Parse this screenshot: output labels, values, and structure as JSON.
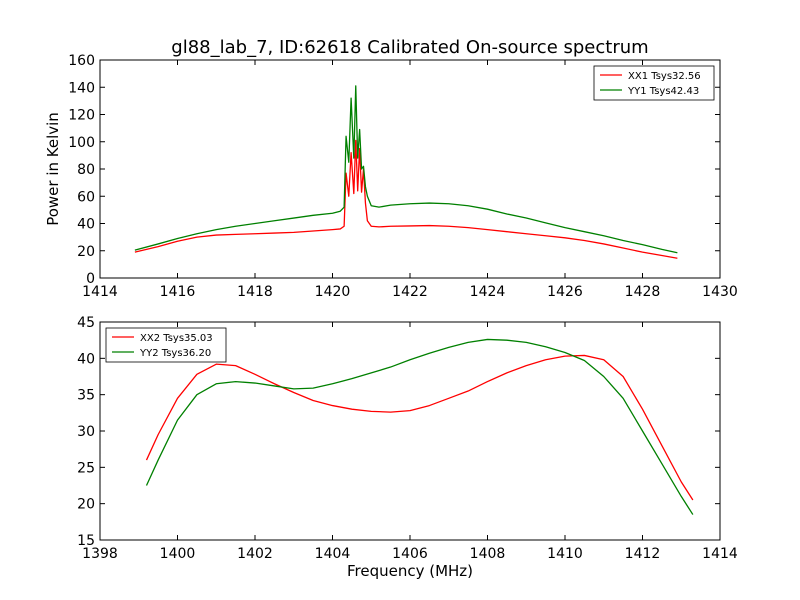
{
  "figure": {
    "title": "gl88_lab_7, ID:62618 Calibrated On-source spectrum"
  },
  "colors": {
    "xx": "#ff0000",
    "yy": "#008000",
    "axes": "#000000",
    "background": "#ffffff"
  },
  "chart_data": [
    {
      "type": "line",
      "title": "gl88_lab_7, ID:62618 Calibrated On-source spectrum",
      "xlabel": "",
      "ylabel": "Power in Kelvin",
      "xlim": [
        1414,
        1430
      ],
      "ylim": [
        0,
        160
      ],
      "xticks": [
        "1414",
        "1416",
        "1418",
        "1420",
        "1422",
        "1424",
        "1426",
        "1428",
        "1430"
      ],
      "yticks": [
        "0",
        "20",
        "40",
        "60",
        "80",
        "100",
        "120",
        "140",
        "160"
      ],
      "grid": false,
      "legend": "top-right",
      "series": [
        {
          "name": "XX1 Tsys32.56",
          "color": "#ff0000",
          "x": [
            1414.9,
            1415.5,
            1416,
            1416.5,
            1417,
            1417.5,
            1418,
            1418.5,
            1419,
            1419.5,
            1420,
            1420.2,
            1420.3,
            1420.35,
            1420.42,
            1420.48,
            1420.55,
            1420.6,
            1420.65,
            1420.7,
            1420.75,
            1420.8,
            1420.85,
            1420.9,
            1421,
            1421.2,
            1421.5,
            1422,
            1422.5,
            1423,
            1423.5,
            1424,
            1424.5,
            1425,
            1425.5,
            1426,
            1426.5,
            1427,
            1427.5,
            1428,
            1428.5,
            1428.9
          ],
          "y": [
            19,
            23,
            27,
            30,
            31.5,
            32,
            32.5,
            33,
            33.5,
            34.5,
            35.5,
            36,
            38,
            77,
            60,
            92,
            62,
            101,
            64,
            95,
            63,
            80,
            55,
            42,
            38,
            37.5,
            38,
            38.2,
            38.5,
            38,
            37,
            35.5,
            34,
            32.5,
            31,
            29.5,
            27.5,
            25,
            22,
            19,
            16.5,
            14.5
          ]
        },
        {
          "name": "YY1 Tsys42.43",
          "color": "#008000",
          "x": [
            1414.9,
            1415.5,
            1416,
            1416.5,
            1417,
            1417.5,
            1418,
            1418.5,
            1419,
            1419.5,
            1420,
            1420.2,
            1420.3,
            1420.35,
            1420.42,
            1420.48,
            1420.55,
            1420.6,
            1420.65,
            1420.7,
            1420.75,
            1420.8,
            1420.85,
            1420.9,
            1421,
            1421.2,
            1421.5,
            1422,
            1422.5,
            1423,
            1423.5,
            1424,
            1424.5,
            1425,
            1425.5,
            1426,
            1426.5,
            1427,
            1427.5,
            1428,
            1428.5,
            1428.9
          ],
          "y": [
            20.5,
            25,
            29,
            32.5,
            35.5,
            38,
            40,
            42,
            44,
            46,
            47.5,
            49,
            52,
            104,
            85,
            132,
            88,
            141,
            88,
            109,
            80,
            82,
            67,
            60,
            53,
            52,
            53.5,
            54.5,
            55,
            54.5,
            53,
            50.5,
            47,
            44,
            40.5,
            37,
            34,
            31,
            27.5,
            24.5,
            21,
            18.5
          ]
        }
      ]
    },
    {
      "type": "line",
      "title": "",
      "xlabel": "Frequency (MHz)",
      "ylabel": "",
      "xlim": [
        1398,
        1414
      ],
      "ylim": [
        15,
        45
      ],
      "xticks": [
        "1398",
        "1400",
        "1402",
        "1404",
        "1406",
        "1408",
        "1410",
        "1412",
        "1414"
      ],
      "yticks": [
        "15",
        "20",
        "25",
        "30",
        "35",
        "40",
        "45"
      ],
      "grid": false,
      "legend": "top-left",
      "series": [
        {
          "name": "XX2 Tsys35.03",
          "color": "#ff0000",
          "x": [
            1399.2,
            1399.5,
            1400,
            1400.5,
            1401,
            1401.5,
            1402,
            1402.5,
            1403,
            1403.5,
            1404,
            1404.5,
            1405,
            1405.5,
            1406,
            1406.5,
            1407,
            1407.5,
            1408,
            1408.5,
            1409,
            1409.5,
            1410,
            1410.5,
            1411,
            1411.5,
            1412,
            1412.5,
            1413,
            1413.3
          ],
          "y": [
            26,
            29.5,
            34.5,
            37.8,
            39.2,
            39,
            37.8,
            36.5,
            35.3,
            34.2,
            33.5,
            33,
            32.7,
            32.6,
            32.8,
            33.5,
            34.5,
            35.5,
            36.8,
            38,
            39,
            39.8,
            40.3,
            40.4,
            39.8,
            37.5,
            33,
            28,
            23,
            20.5
          ]
        },
        {
          "name": "YY2 Tsys36.20",
          "color": "#008000",
          "x": [
            1399.2,
            1399.5,
            1400,
            1400.5,
            1401,
            1401.5,
            1402,
            1402.5,
            1403,
            1403.5,
            1404,
            1404.5,
            1405,
            1405.5,
            1406,
            1406.5,
            1407,
            1407.5,
            1408,
            1408.5,
            1409,
            1409.5,
            1410,
            1410.5,
            1411,
            1411.5,
            1412,
            1412.5,
            1413,
            1413.3
          ],
          "y": [
            22.5,
            26,
            31.5,
            35,
            36.5,
            36.8,
            36.6,
            36.2,
            35.8,
            35.9,
            36.5,
            37.2,
            38,
            38.8,
            39.8,
            40.7,
            41.5,
            42.2,
            42.6,
            42.5,
            42.2,
            41.6,
            40.8,
            39.7,
            37.5,
            34.5,
            30,
            25.5,
            21,
            18.5
          ]
        }
      ]
    }
  ]
}
